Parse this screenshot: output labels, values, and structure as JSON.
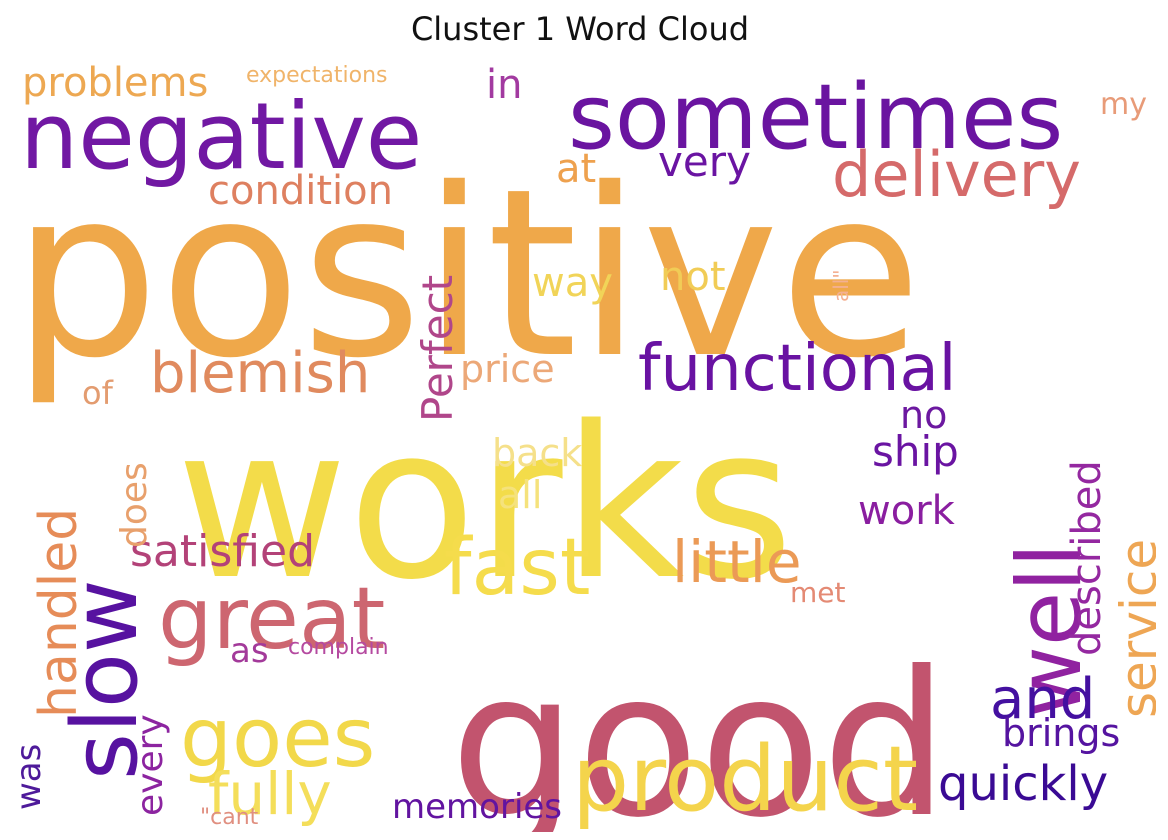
{
  "chart_data": {
    "type": "wordcloud",
    "title": "Cluster 1 Word Cloud",
    "colormap": "plasma",
    "words": [
      {
        "text": "positive",
        "color": "#efa84a"
      },
      {
        "text": "works",
        "color": "#f3dc4a"
      },
      {
        "text": "good",
        "color": "#c2546e"
      },
      {
        "text": "sometimes",
        "color": "#6a14a0"
      },
      {
        "text": "negative",
        "color": "#7118a3"
      },
      {
        "text": "product",
        "color": "#f4d44c"
      },
      {
        "text": "great",
        "color": "#cd6670"
      },
      {
        "text": "well",
        "color": "#9022a0"
      },
      {
        "text": "slow",
        "color": "#5712a0"
      },
      {
        "text": "fast",
        "color": "#f5dc4c"
      },
      {
        "text": "goes",
        "color": "#f2d84a"
      },
      {
        "text": "functional",
        "color": "#6912a2"
      },
      {
        "text": "delivery",
        "color": "#d56a6a"
      },
      {
        "text": "blemish",
        "color": "#e08a5e"
      },
      {
        "text": "little",
        "color": "#eb9a56"
      },
      {
        "text": "fully",
        "color": "#f4de5a"
      },
      {
        "text": "handled",
        "color": "#e68c58"
      },
      {
        "text": "service",
        "color": "#eea654"
      },
      {
        "text": "quickly",
        "color": "#3a0a94"
      },
      {
        "text": "and",
        "color": "#4410a0"
      },
      {
        "text": "satisfied",
        "color": "#b34278"
      },
      {
        "text": "condition",
        "color": "#de8060"
      },
      {
        "text": "Perfect",
        "color": "#b0468a"
      },
      {
        "text": "described",
        "color": "#9428a0"
      },
      {
        "text": "problems",
        "color": "#eda852"
      },
      {
        "text": "very",
        "color": "#6a14a2"
      },
      {
        "text": "brings",
        "color": "#5514a0"
      },
      {
        "text": "not",
        "color": "#f1cc56"
      },
      {
        "text": "way",
        "color": "#f1d458"
      },
      {
        "text": "price",
        "color": "#eca878"
      },
      {
        "text": "ship",
        "color": "#6a14a2"
      },
      {
        "text": "work",
        "color": "#8a1ea0"
      },
      {
        "text": "does",
        "color": "#e8a06c"
      },
      {
        "text": "memories",
        "color": "#6214a0"
      },
      {
        "text": "every",
        "color": "#8c24a0"
      },
      {
        "text": "back",
        "color": "#f5e08a"
      },
      {
        "text": "in",
        "color": "#a23aa0"
      },
      {
        "text": "at",
        "color": "#eea14e"
      },
      {
        "text": "no",
        "color": "#6c18a0"
      },
      {
        "text": "all",
        "color": "#f5e27c"
      },
      {
        "text": "was",
        "color": "#4e1a9a"
      },
      {
        "text": "as",
        "color": "#a33a9a"
      },
      {
        "text": "of",
        "color": "#e39c70"
      },
      {
        "text": "my",
        "color": "#e89b78"
      },
      {
        "text": "met",
        "color": "#e48a74"
      },
      {
        "text": "expectations",
        "color": "#f0b46a"
      },
      {
        "text": "complain",
        "color": "#b54aa0"
      },
      {
        "text": "\"cant",
        "color": "#e08f80"
      },
      {
        "text": "all\"",
        "color": "#f4b092"
      }
    ]
  }
}
